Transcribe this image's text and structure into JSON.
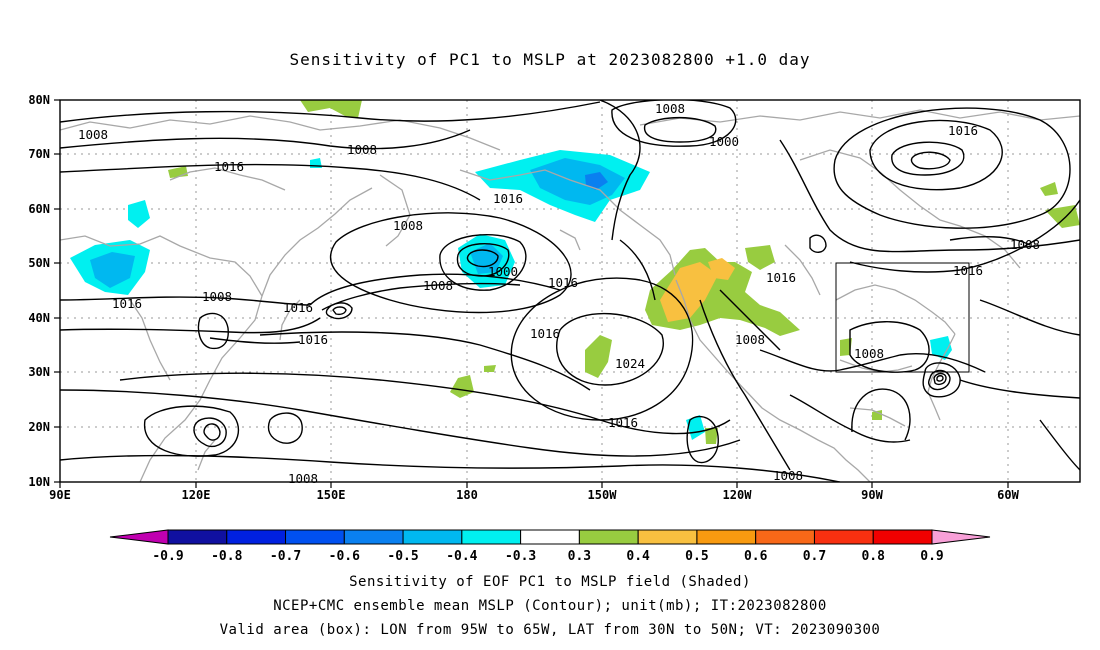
{
  "title": "Sensitivity of PC1 to MSLP at 2023082800 +1.0 day",
  "map": {
    "lat_ticks": [
      "80N",
      "70N",
      "60N",
      "50N",
      "40N",
      "30N",
      "20N",
      "10N"
    ],
    "lon_ticks": [
      "90E",
      "120E",
      "150E",
      "180",
      "150W",
      "120W",
      "90W",
      "60W"
    ],
    "contour_labels": [
      "1008",
      "1008",
      "1008",
      "1016",
      "1016",
      "1008",
      "1008",
      "1000",
      "1016",
      "1000",
      "1008",
      "1016",
      "1016",
      "1016",
      "1008",
      "1016",
      "1008",
      "1016",
      "1016",
      "1008",
      "1024",
      "1008",
      "1016",
      "1008",
      "1016",
      "1008",
      "1008"
    ],
    "colors": {
      "coast": "#a8a8a8",
      "contour": "#000000",
      "box": "#000000",
      "grid": "#9a9a9a"
    }
  },
  "colorbar": {
    "labels": [
      "-0.9",
      "-0.8",
      "-0.7",
      "-0.6",
      "-0.5",
      "-0.4",
      "-0.3",
      "0.3",
      "0.4",
      "0.5",
      "0.6",
      "0.7",
      "0.8",
      "0.9"
    ],
    "colors": [
      "#c000b0",
      "#1010a0",
      "#0020e0",
      "#0050f0",
      "#0a80f0",
      "#00b8f0",
      "#00f0f0",
      "#ffffff",
      "#98cc40",
      "#f8c040",
      "#f89a10",
      "#f86818",
      "#f83010",
      "#f00000",
      "#f8a0d8"
    ]
  },
  "captions": [
    "Sensitivity of EOF PC1 to MSLP field (Shaded)",
    "NCEP+CMC ensemble mean MSLP (Contour); unit(mb); IT:2023082800",
    "Valid area (box): LON from 95W to 65W, LAT from 30N to 50N; VT: 2023090300"
  ]
}
